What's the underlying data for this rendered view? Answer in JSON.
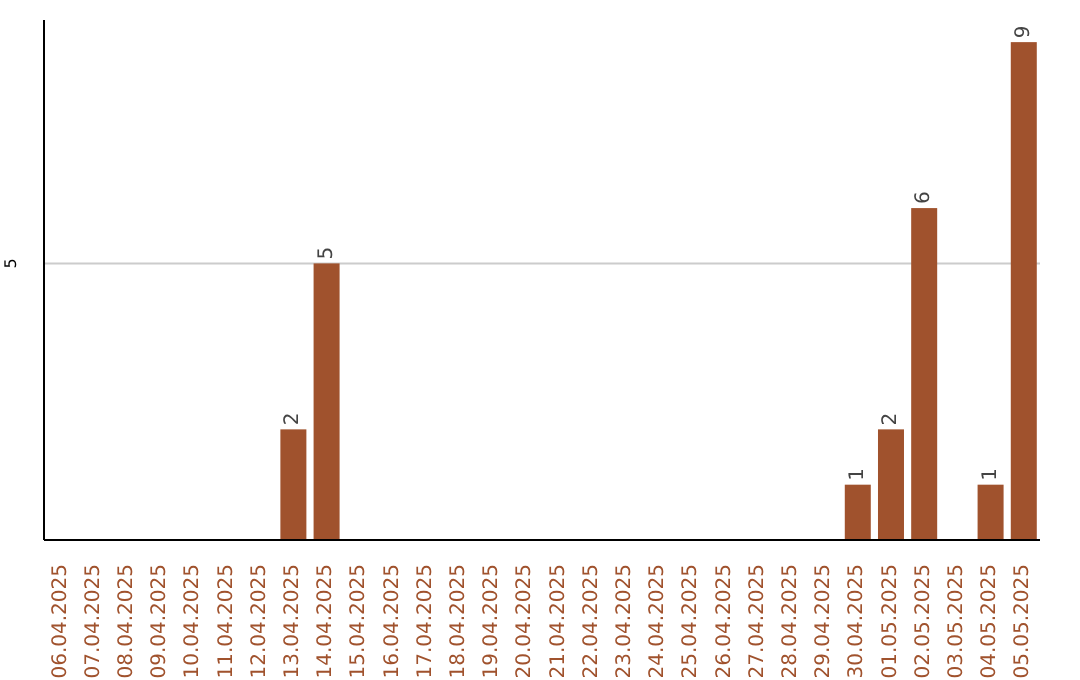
{
  "chart_data": {
    "type": "bar",
    "categories": [
      "06.04.2025",
      "07.04.2025",
      "08.04.2025",
      "09.04.2025",
      "10.04.2025",
      "11.04.2025",
      "12.04.2025",
      "13.04.2025",
      "14.04.2025",
      "15.04.2025",
      "16.04.2025",
      "17.04.2025",
      "18.04.2025",
      "19.04.2025",
      "20.04.2025",
      "21.04.2025",
      "22.04.2025",
      "23.04.2025",
      "24.04.2025",
      "25.04.2025",
      "26.04.2025",
      "27.04.2025",
      "28.04.2025",
      "29.04.2025",
      "30.04.2025",
      "01.05.2025",
      "02.05.2025",
      "03.05.2025",
      "04.05.2025",
      "05.05.2025"
    ],
    "values": [
      0,
      0,
      0,
      0,
      0,
      0,
      0,
      2,
      5,
      0,
      0,
      0,
      0,
      0,
      0,
      0,
      0,
      0,
      0,
      0,
      0,
      0,
      0,
      0,
      1,
      2,
      6,
      0,
      1,
      9
    ],
    "value_labels": [
      null,
      null,
      null,
      null,
      null,
      null,
      null,
      "2",
      "5",
      null,
      null,
      null,
      null,
      null,
      null,
      null,
      null,
      null,
      null,
      null,
      null,
      null,
      null,
      null,
      "1",
      "2",
      "6",
      null,
      "1",
      "9"
    ],
    "color": "#a0522d",
    "ylim": [
      0,
      9.4
    ],
    "yticks": [
      5
    ],
    "grid": "y"
  }
}
